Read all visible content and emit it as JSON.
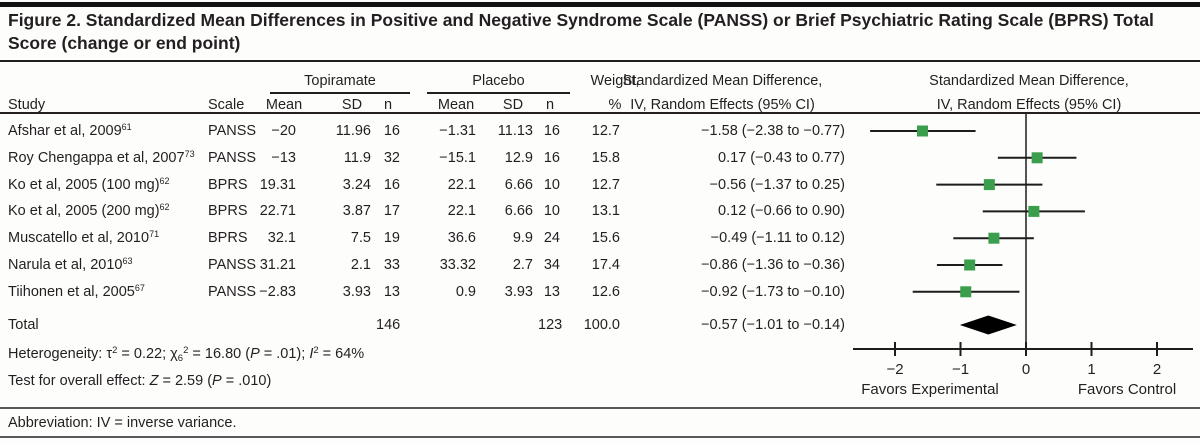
{
  "title": "Figure 2. Standardized Mean Differences in Positive and Negative Syndrome Scale (PANSS) or Brief Psychiatric Rating Scale (BPRS) Total Score (change or end point)",
  "header": {
    "study": "Study",
    "scale": "Scale",
    "group1": "Topiramate",
    "group2": "Placebo",
    "mean1": "Mean",
    "sd1": "SD",
    "n1": "n",
    "mean2": "Mean",
    "sd2": "SD",
    "n2": "n",
    "weight_line1": "Weight,",
    "weight_line2": "%",
    "smd_line1": "Standardized Mean Difference,",
    "smd_line2": "IV, Random Effects (95% CI)",
    "plot_line1": "Standardized Mean Difference,",
    "plot_line2": "IV, Random Effects (95% CI)"
  },
  "rows": [
    {
      "study": "Afshar et al, 2009",
      "ref": "61",
      "scale": "PANSS",
      "t_mean": "−20",
      "t_sd": "11.96",
      "t_n": "16",
      "p_mean": "−1.31",
      "p_sd": "11.13",
      "p_n": "16",
      "weight": "12.7",
      "smd": "−1.58 (−2.38 to −0.77)"
    },
    {
      "study": "Roy Chengappa et al, 2007",
      "ref": "73",
      "scale": "PANSS",
      "t_mean": "−13",
      "t_sd": "11.9",
      "t_n": "32",
      "p_mean": "−15.1",
      "p_sd": "12.9",
      "p_n": "16",
      "weight": "15.8",
      "smd": "0.17 (−0.43 to 0.77)"
    },
    {
      "study": "Ko et al, 2005 (100 mg)",
      "ref": "62",
      "scale": "BPRS",
      "t_mean": "19.31",
      "t_sd": "3.24",
      "t_n": "16",
      "p_mean": "22.1",
      "p_sd": "6.66",
      "p_n": "10",
      "weight": "12.7",
      "smd": "−0.56 (−1.37 to 0.25)"
    },
    {
      "study": "Ko et al, 2005 (200 mg)",
      "ref": "62",
      "scale": "BPRS",
      "t_mean": "22.71",
      "t_sd": "3.87",
      "t_n": "17",
      "p_mean": "22.1",
      "p_sd": "6.66",
      "p_n": "10",
      "weight": "13.1",
      "smd": "0.12 (−0.66 to 0.90)"
    },
    {
      "study": "Muscatello et al, 2010",
      "ref": "71",
      "scale": "BPRS",
      "t_mean": "32.1",
      "t_sd": "7.5",
      "t_n": "19",
      "p_mean": "36.6",
      "p_sd": "9.9",
      "p_n": "24",
      "weight": "15.6",
      "smd": "−0.49 (−1.11 to 0.12)"
    },
    {
      "study": "Narula et al, 2010",
      "ref": "63",
      "scale": "PANSS",
      "t_mean": "31.21",
      "t_sd": "2.1",
      "t_n": "33",
      "p_mean": "33.32",
      "p_sd": "2.7",
      "p_n": "34",
      "weight": "17.4",
      "smd": "−0.86 (−1.36 to −0.36)"
    },
    {
      "study": "Tiihonen et al, 2005",
      "ref": "67",
      "scale": "PANSS",
      "t_mean": "−2.83",
      "t_sd": "3.93",
      "t_n": "13",
      "p_mean": "0.9",
      "p_sd": "3.93",
      "p_n": "13",
      "weight": "12.6",
      "smd": "−0.92 (−1.73 to −0.10)"
    }
  ],
  "total": {
    "label": "Total",
    "t_n": "146",
    "p_n": "123",
    "weight": "100.0",
    "smd": "−0.57 (−1.01 to −0.14)"
  },
  "stats": {
    "heterogeneity": [
      {
        "t": "Heterogeneity: τ"
      },
      {
        "t": "2",
        "sup": 1
      },
      {
        "t": " = 0.22; χ"
      },
      {
        "t": "6",
        "sub": 1
      },
      {
        "t": "2",
        "sup": 1
      },
      {
        "t": " = 16.80 ("
      },
      {
        "t": "P",
        "i": 1
      },
      {
        "t": " = .01); "
      },
      {
        "t": "I",
        "i": 1
      },
      {
        "t": "2",
        "sup": 1
      },
      {
        "t": " = 64%"
      }
    ],
    "overall": [
      {
        "t": "Test for overall effect: "
      },
      {
        "t": "Z",
        "i": 1
      },
      {
        "t": " = 2.59 ("
      },
      {
        "t": "P",
        "i": 1
      },
      {
        "t": " = .010)"
      }
    ]
  },
  "abbreviation": "Abbreviation: IV = inverse variance.",
  "chart_data": {
    "type": "scatter",
    "variant": "forest-plot",
    "title": "Standardized Mean Difference, IV, Random Effects (95% CI)",
    "x_axis": {
      "ticks": [
        -2,
        -1,
        0,
        1,
        2
      ],
      "tick_labels": [
        "−2",
        "−1",
        "0",
        "1",
        "2"
      ],
      "range": [
        -2.6,
        2.6
      ],
      "label_left": "Favors Experimental",
      "label_right": "Favors Control"
    },
    "studies": [
      {
        "name": "Afshar et al, 2009",
        "est": -1.58,
        "lo": -2.38,
        "hi": -0.77
      },
      {
        "name": "Roy Chengappa et al, 2007",
        "est": 0.17,
        "lo": -0.43,
        "hi": 0.77
      },
      {
        "name": "Ko et al, 2005 (100 mg)",
        "est": -0.56,
        "lo": -1.37,
        "hi": 0.25
      },
      {
        "name": "Ko et al, 2005 (200 mg)",
        "est": 0.12,
        "lo": -0.66,
        "hi": 0.9
      },
      {
        "name": "Muscatello et al, 2010",
        "est": -0.49,
        "lo": -1.11,
        "hi": 0.12
      },
      {
        "name": "Narula et al, 2010",
        "est": -0.86,
        "lo": -1.36,
        "hi": -0.36
      },
      {
        "name": "Tiihonen et al, 2005",
        "est": -0.92,
        "lo": -1.73,
        "hi": -0.1
      }
    ],
    "total": {
      "est": -0.57,
      "lo": -1.01,
      "hi": -0.14
    },
    "marker_color": "#3b9e4c",
    "diamond_color": "#000000",
    "line_color": "#1d1d1b"
  },
  "colors": {
    "text": "#231f20",
    "rule": "#231f20",
    "note_rule": "#58595b"
  }
}
